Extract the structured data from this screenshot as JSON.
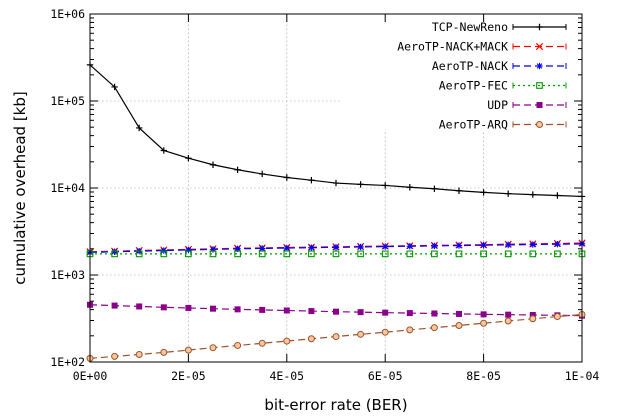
{
  "chart_data": {
    "type": "line",
    "title": "",
    "xlabel": "bit-error rate (BER)",
    "ylabel": "cumulative overhead [kb]",
    "xlim": [
      0,
      0.0001
    ],
    "ylim": [
      100,
      1000000
    ],
    "y_scale": "log",
    "grid": true,
    "legend_position": "top-right",
    "x_tick_values": [
      0,
      2e-05,
      4e-05,
      6e-05,
      8e-05,
      0.0001
    ],
    "x_tick_labels": [
      "0E+00",
      "2E-05",
      "4E-05",
      "6E-05",
      "8E-05",
      "1E-04"
    ],
    "y_tick_values": [
      100,
      1000,
      10000,
      100000,
      1000000
    ],
    "y_tick_labels": [
      "1E+02",
      "1E+03",
      "1E+04",
      "1E+05",
      "1E+06"
    ],
    "x": [
      0,
      5e-06,
      1e-05,
      1.5e-05,
      2e-05,
      2.5e-05,
      3e-05,
      3.5e-05,
      4e-05,
      4.5e-05,
      5e-05,
      5.5e-05,
      6e-05,
      6.5e-05,
      7e-05,
      7.5e-05,
      8e-05,
      8.5e-05,
      9e-05,
      9.5e-05,
      0.0001
    ],
    "series": [
      {
        "name": "TCP-NewReno",
        "color": "#000000",
        "marker": "plus",
        "dash": "solid",
        "values": [
          260000,
          145000,
          49000,
          27000,
          22000,
          18500,
          16200,
          14500,
          13200,
          12300,
          11400,
          11000,
          10700,
          10200,
          9800,
          9300,
          8900,
          8600,
          8400,
          8200,
          8000
        ]
      },
      {
        "name": "AeroTP-NACK+MACK",
        "color": "#ff0000",
        "marker": "x",
        "dash": "dashed",
        "values": [
          1850,
          1880,
          1910,
          1940,
          1970,
          2000,
          2030,
          2050,
          2070,
          2090,
          2110,
          2130,
          2150,
          2170,
          2190,
          2210,
          2230,
          2260,
          2280,
          2300,
          2330
        ]
      },
      {
        "name": "AeroTP-NACK",
        "color": "#0000ff",
        "marker": "star",
        "dash": "dashed",
        "values": [
          1820,
          1850,
          1880,
          1910,
          1940,
          1970,
          2000,
          2020,
          2040,
          2060,
          2080,
          2100,
          2120,
          2140,
          2160,
          2180,
          2200,
          2220,
          2240,
          2260,
          2280
        ]
      },
      {
        "name": "AeroTP-FEC",
        "color": "#009900",
        "marker": "open-square",
        "dash": "dotted",
        "values": [
          1750,
          1750,
          1750,
          1750,
          1750,
          1750,
          1750,
          1750,
          1750,
          1750,
          1750,
          1750,
          1750,
          1750,
          1750,
          1750,
          1750,
          1750,
          1750,
          1750,
          1750
        ]
      },
      {
        "name": "UDP",
        "color": "#8b008b",
        "marker": "filled-square",
        "dash": "dashed",
        "values": [
          455,
          445,
          435,
          425,
          418,
          410,
          403,
          397,
          391,
          385,
          379,
          374,
          369,
          365,
          361,
          357,
          353,
          350,
          347,
          344,
          341
        ]
      },
      {
        "name": "AeroTP-ARQ",
        "color": "#a0522d",
        "marker": "open-circle",
        "dash": "dashed",
        "values": [
          110,
          116,
          122,
          129,
          137,
          146,
          155,
          164,
          174,
          185,
          196,
          208,
          220,
          234,
          248,
          263,
          279,
          296,
          314,
          333,
          352
        ]
      }
    ]
  }
}
